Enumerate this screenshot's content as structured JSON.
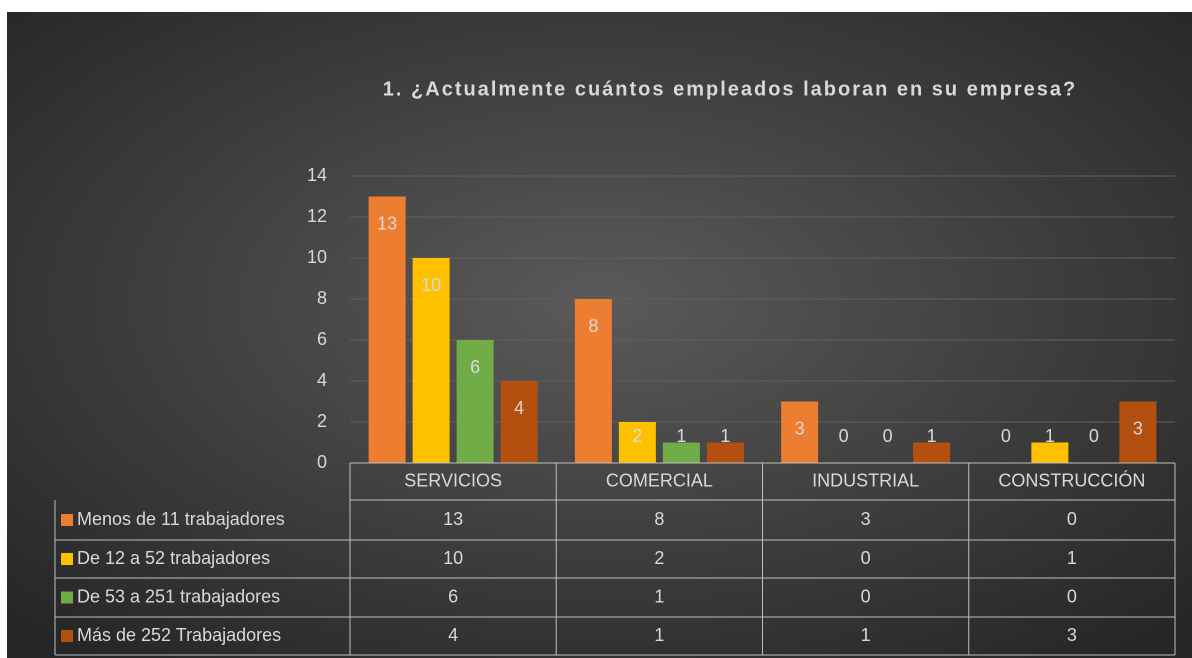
{
  "chart_data": {
    "type": "bar",
    "title": "1. ¿Actualmente cuántos  empleados  laboran en su empresa?",
    "categories": [
      "SERVICIOS",
      "COMERCIAL",
      "INDUSTRIAL",
      "CONSTRUCCIÓN"
    ],
    "series": [
      {
        "name": "Menos de 11 trabajadores",
        "color": "#ed7d31",
        "values": [
          13,
          8,
          3,
          0
        ]
      },
      {
        "name": "De 12 a 52 trabajadores",
        "color": "#ffc000",
        "values": [
          10,
          2,
          0,
          1
        ]
      },
      {
        "name": "De 53 a 251 trabajadores",
        "color": "#70ad47",
        "values": [
          6,
          1,
          0,
          0
        ]
      },
      {
        "name": "Más de 252 Trabajadores",
        "color": "#b4500f",
        "values": [
          4,
          1,
          1,
          3
        ]
      }
    ],
    "ylim": [
      0,
      14
    ],
    "yticks": [
      0,
      2,
      4,
      6,
      8,
      10,
      12,
      14
    ],
    "grid": true,
    "data_table": true
  }
}
